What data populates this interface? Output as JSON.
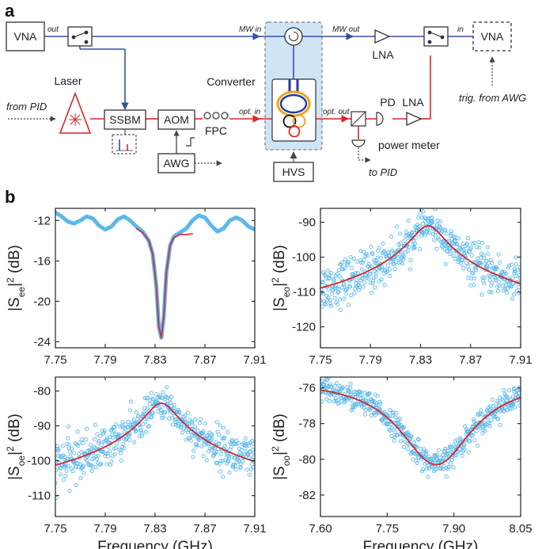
{
  "panel_a": {
    "letter": "a",
    "labels": {
      "vna_left": "VNA",
      "out": "out",
      "mw_in": "MW in",
      "mw_out": "MW out",
      "lna_top": "LNA",
      "in": "in",
      "vna_right": "VNA",
      "trig": "trig. from AWG",
      "laser": "Laser",
      "from_pid": "from PID",
      "ssbm": "SSBM",
      "aom": "AOM",
      "fpc": "FPC",
      "opt_in": "opt. in",
      "converter": "Converter",
      "opt_out": "opt. out",
      "pd": "PD",
      "lna_bottom": "LNA",
      "awg": "AWG",
      "hvs": "HVS",
      "power_meter": "power meter",
      "to_pid": "to PID"
    },
    "colors": {
      "microwave": "#3a4fa0",
      "optical": "#d8262b",
      "chip_bg": "#cfe4f5"
    }
  },
  "panel_b": {
    "letter": "b"
  },
  "chart_data": [
    {
      "type": "line",
      "name": "S_ee",
      "ylabel_main": "|S",
      "ylabel_sub": "ee",
      "ylabel_rest": "|",
      "ylabel_sup": "2",
      "ylabel_unit": " (dB)",
      "xlabel": "",
      "xlim": [
        7.75,
        7.91
      ],
      "ylim": [
        -24.6,
        -10.8
      ],
      "xticks": [
        "7.75",
        "7.79",
        "7.83",
        "7.87",
        "7.91"
      ],
      "xtick_values": [
        7.75,
        7.79,
        7.83,
        7.87,
        7.91
      ],
      "yticks": [
        "-12",
        "-16",
        "-20",
        "-24"
      ],
      "ytick_values": [
        -12,
        -16,
        -20,
        -24
      ],
      "series": [
        {
          "style": "thick-line",
          "color": "#5bb8ec",
          "x": [
            7.75,
            7.755,
            7.76,
            7.765,
            7.77,
            7.775,
            7.78,
            7.785,
            7.79,
            7.795,
            7.8,
            7.805,
            7.81,
            7.815,
            7.82,
            7.825,
            7.828,
            7.831,
            7.833,
            7.835,
            7.837,
            7.839,
            7.842,
            7.845,
            7.85,
            7.855,
            7.86,
            7.865,
            7.87,
            7.875,
            7.88,
            7.885,
            7.89,
            7.895,
            7.9,
            7.905,
            7.91
          ],
          "y": [
            -11.2,
            -11.6,
            -12.1,
            -12.3,
            -12.0,
            -11.6,
            -11.8,
            -12.5,
            -12.9,
            -12.6,
            -11.9,
            -11.6,
            -12.0,
            -12.6,
            -13.1,
            -14.0,
            -15.3,
            -18.5,
            -22.5,
            -23.6,
            -21.5,
            -17.2,
            -14.5,
            -13.6,
            -13.2,
            -12.8,
            -12.0,
            -11.5,
            -11.7,
            -12.5,
            -13.1,
            -12.8,
            -12.0,
            -11.7,
            -12.0,
            -12.6,
            -12.9
          ]
        },
        {
          "style": "line",
          "color": "#d8262b",
          "x": [
            7.815,
            7.82,
            7.825,
            7.828,
            7.831,
            7.833,
            7.835,
            7.837,
            7.839,
            7.842,
            7.845,
            7.85,
            7.855,
            7.86
          ],
          "y": [
            -12.8,
            -13.2,
            -14.0,
            -15.3,
            -18.5,
            -22.5,
            -23.6,
            -21.5,
            -17.2,
            -14.5,
            -13.7,
            -13.4,
            -13.4,
            -13.3
          ]
        }
      ]
    },
    {
      "type": "scatter",
      "name": "S_eo",
      "ylabel_main": "|S",
      "ylabel_sub": "eo",
      "ylabel_rest": "|",
      "ylabel_sup": "2",
      "ylabel_unit": " (dB)",
      "xlabel": "",
      "xlim": [
        7.75,
        7.91
      ],
      "ylim": [
        -126,
        -86
      ],
      "xticks": [
        "7.75",
        "7.79",
        "7.83",
        "7.87",
        "7.91"
      ],
      "xtick_values": [
        7.75,
        7.79,
        7.83,
        7.87,
        7.91
      ],
      "yticks": [
        "-90",
        "-100",
        "-110",
        "-120"
      ],
      "ytick_values": [
        -90,
        -100,
        -110,
        -120
      ],
      "fit": {
        "type": "lorentzian",
        "center": 7.836,
        "peak": -91,
        "half_width": 0.011,
        "floor": -126.5,
        "color": "#d8262b"
      },
      "scatter_color": "#5bb8ec",
      "scatter_noise_base": 2.0,
      "scatter_noise_scale": 0.33
    },
    {
      "type": "scatter",
      "name": "S_oe",
      "ylabel_main": "|S",
      "ylabel_sub": "oe",
      "ylabel_rest": "|",
      "ylabel_sup": "2",
      "ylabel_unit": " (dB)",
      "xlabel": "Frequency (GHz)",
      "xlim": [
        7.75,
        7.91
      ],
      "ylim": [
        -116,
        -76
      ],
      "xticks": [
        "7.75",
        "7.79",
        "7.83",
        "7.87",
        "7.91"
      ],
      "xtick_values": [
        7.75,
        7.79,
        7.83,
        7.87,
        7.91
      ],
      "yticks": [
        "-80",
        "-90",
        "-100",
        "-110"
      ],
      "ytick_values": [
        -80,
        -90,
        -100,
        -110
      ],
      "fit": {
        "type": "lorentzian",
        "center": 7.835,
        "peak": -83.5,
        "half_width": 0.011,
        "floor": -118.2,
        "color": "#d8262b"
      },
      "scatter_color": "#5bb8ec",
      "scatter_noise_base": 2.0,
      "scatter_noise_scale": 0.3
    },
    {
      "type": "scatter",
      "name": "S_oo",
      "ylabel_main": "|S",
      "ylabel_sub": "oo",
      "ylabel_rest": "|",
      "ylabel_sup": "2",
      "ylabel_unit": " (dB)",
      "xlabel": "Frequency (GHz)",
      "xlim": [
        7.6,
        8.05
      ],
      "ylim": [
        -83.2,
        -75.4
      ],
      "xticks": [
        "7.60",
        "7.75",
        "7.90",
        "8.05"
      ],
      "xtick_values": [
        7.6,
        7.75,
        7.9,
        8.05
      ],
      "yticks": [
        "-76",
        "-78",
        "-80",
        "-82"
      ],
      "ytick_values": [
        -76,
        -78,
        -80,
        -82
      ],
      "fit": {
        "type": "lorentzian-dip",
        "center": 7.86,
        "depth": 4.8,
        "half_width": 0.1,
        "baseline": -75.5,
        "color": "#d8262b"
      },
      "scatter_color": "#5bb8ec",
      "scatter_noise_base": 0.35,
      "scatter_noise_scale": 0.0
    }
  ]
}
